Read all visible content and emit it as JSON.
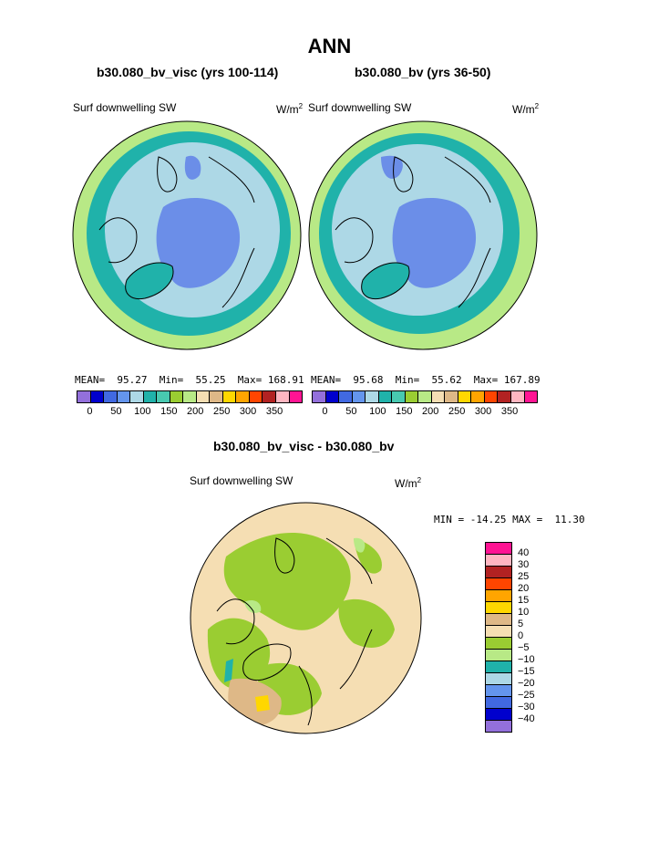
{
  "title": "ANN",
  "panels": [
    {
      "title": "b30.080_bv_visc (yrs 100-114)",
      "variable": "Surf downwelling SW",
      "units_base": "W/m",
      "units_sup": "2",
      "stats": "MEAN=  95.27  Min=  55.25  Max= 168.91"
    },
    {
      "title": "b30.080_bv (yrs 36-50)",
      "variable": "Surf downwelling SW",
      "units_base": "W/m",
      "units_sup": "2",
      "stats": "MEAN=  95.68  Min=  55.62  Max= 167.89"
    }
  ],
  "colorbar_top": {
    "colors": [
      "#9370db",
      "#0000cd",
      "#4169e1",
      "#6495ed",
      "#add8e6",
      "#20b2aa",
      "#48c9b0",
      "#9acd32",
      "#b8e986",
      "#f5deb3",
      "#deb887",
      "#ffd700",
      "#ffa500",
      "#ff4500",
      "#b22222",
      "#ffb6c1",
      "#ff1493"
    ],
    "ticks": [
      "0",
      "50",
      "100",
      "150",
      "200",
      "250",
      "300",
      "350"
    ]
  },
  "diff_panel": {
    "title": "b30.080_bv_visc - b30.080_bv",
    "variable": "Surf downwelling SW",
    "units_base": "W/m",
    "units_sup": "2",
    "stats": "MIN = -14.25 MAX =  11.30"
  },
  "colorbar_diff": {
    "colors": [
      "#ff1493",
      "#ffb6c1",
      "#b22222",
      "#ff4500",
      "#ffa500",
      "#ffd700",
      "#deb887",
      "#f5deb3",
      "#9acd32",
      "#b8e986",
      "#20b2aa",
      "#add8e6",
      "#6495ed",
      "#4169e1",
      "#0000cd",
      "#9370db"
    ],
    "ticks": [
      "40",
      "30",
      "25",
      "20",
      "15",
      "10",
      "5",
      "0",
      "−5",
      "−10",
      "−15",
      "−20",
      "−25",
      "−30",
      "−40"
    ]
  },
  "map_colors": {
    "ocean_blue": "#add8e6",
    "low_blue": "#6b8ee8",
    "teal": "#20b2aa",
    "green": "#b8e986",
    "olive": "#9acd32",
    "tan": "#f5deb3",
    "dark_tan": "#deb887",
    "yellow": "#ffd700"
  }
}
